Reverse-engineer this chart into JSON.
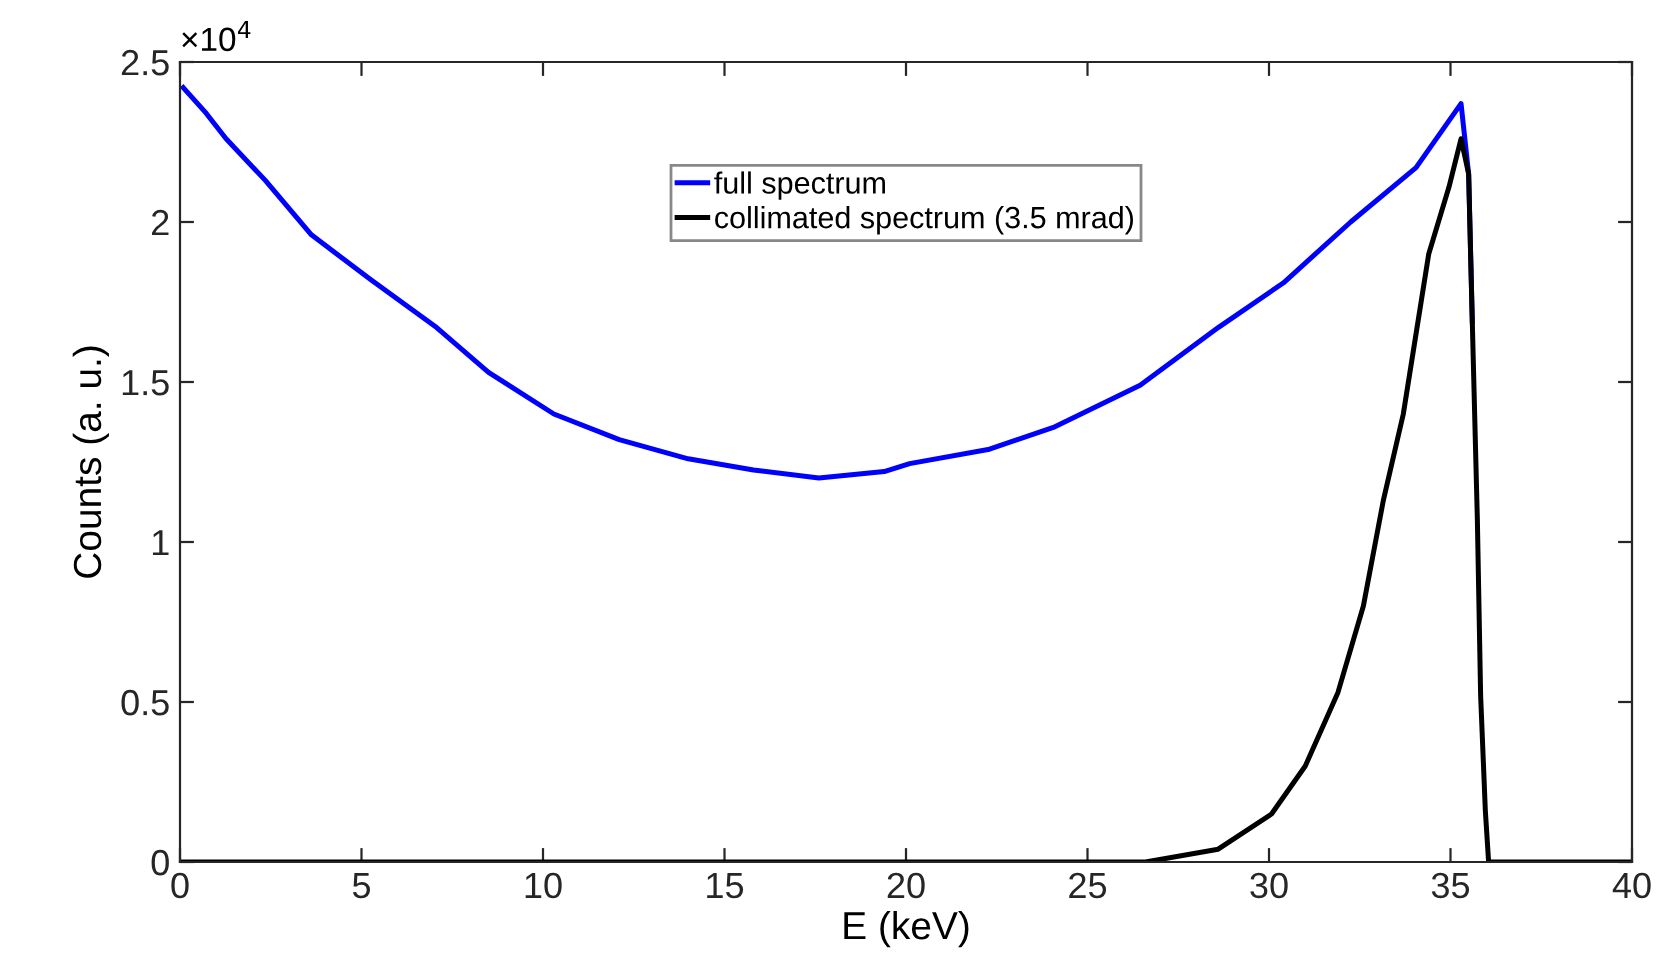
{
  "chart_data": {
    "type": "line",
    "xlabel": "E (keV)",
    "ylabel": "Counts (a. u.)",
    "xlim": [
      0,
      40
    ],
    "xticks": [
      0,
      5,
      10,
      15,
      20,
      25,
      30,
      35,
      40
    ],
    "ylim": [
      0,
      2.5
    ],
    "yticks": [
      0,
      0.5,
      1,
      1.5,
      2,
      2.5
    ],
    "annotations": [
      "×10$^{4}$"
    ],
    "grid": false,
    "legend": "top",
    "series": [
      {
        "name": "full spectrum",
        "color": "#0000ff",
        "x": [
          0.09,
          0.72,
          1.27,
          2.35,
          3.62,
          5.25,
          7.07,
          8.5,
          10.3,
          12.1,
          14.0,
          15.8,
          17.6,
          19.4,
          20.1,
          22.3,
          24.1,
          26.45,
          28.6,
          30.4,
          32.25,
          34.05,
          35.29,
          35.5,
          35.6
        ],
        "values": [
          2.42,
          2.34,
          2.26,
          2.13,
          1.96,
          1.82,
          1.67,
          1.53,
          1.4,
          1.32,
          1.26,
          1.225,
          1.2,
          1.22,
          1.245,
          1.29,
          1.36,
          1.49,
          1.67,
          1.81,
          2.0,
          2.17,
          2.37,
          2.15,
          1.69
        ]
      },
      {
        "name": "collimated spectrum (3.5 mrad)",
        "color": "#000000",
        "x": [
          0,
          26.6,
          28.6,
          30.07,
          31.0,
          31.9,
          32.6,
          33.15,
          33.7,
          34.4,
          34.96,
          35.29,
          35.5,
          35.6,
          35.74,
          35.83,
          35.96,
          36.05,
          40
        ],
        "values": [
          0,
          0,
          0.04,
          0.15,
          0.3,
          0.53,
          0.8,
          1.13,
          1.4,
          1.9,
          2.11,
          2.26,
          2.15,
          1.69,
          1.07,
          0.52,
          0.16,
          0,
          0
        ]
      }
    ]
  }
}
